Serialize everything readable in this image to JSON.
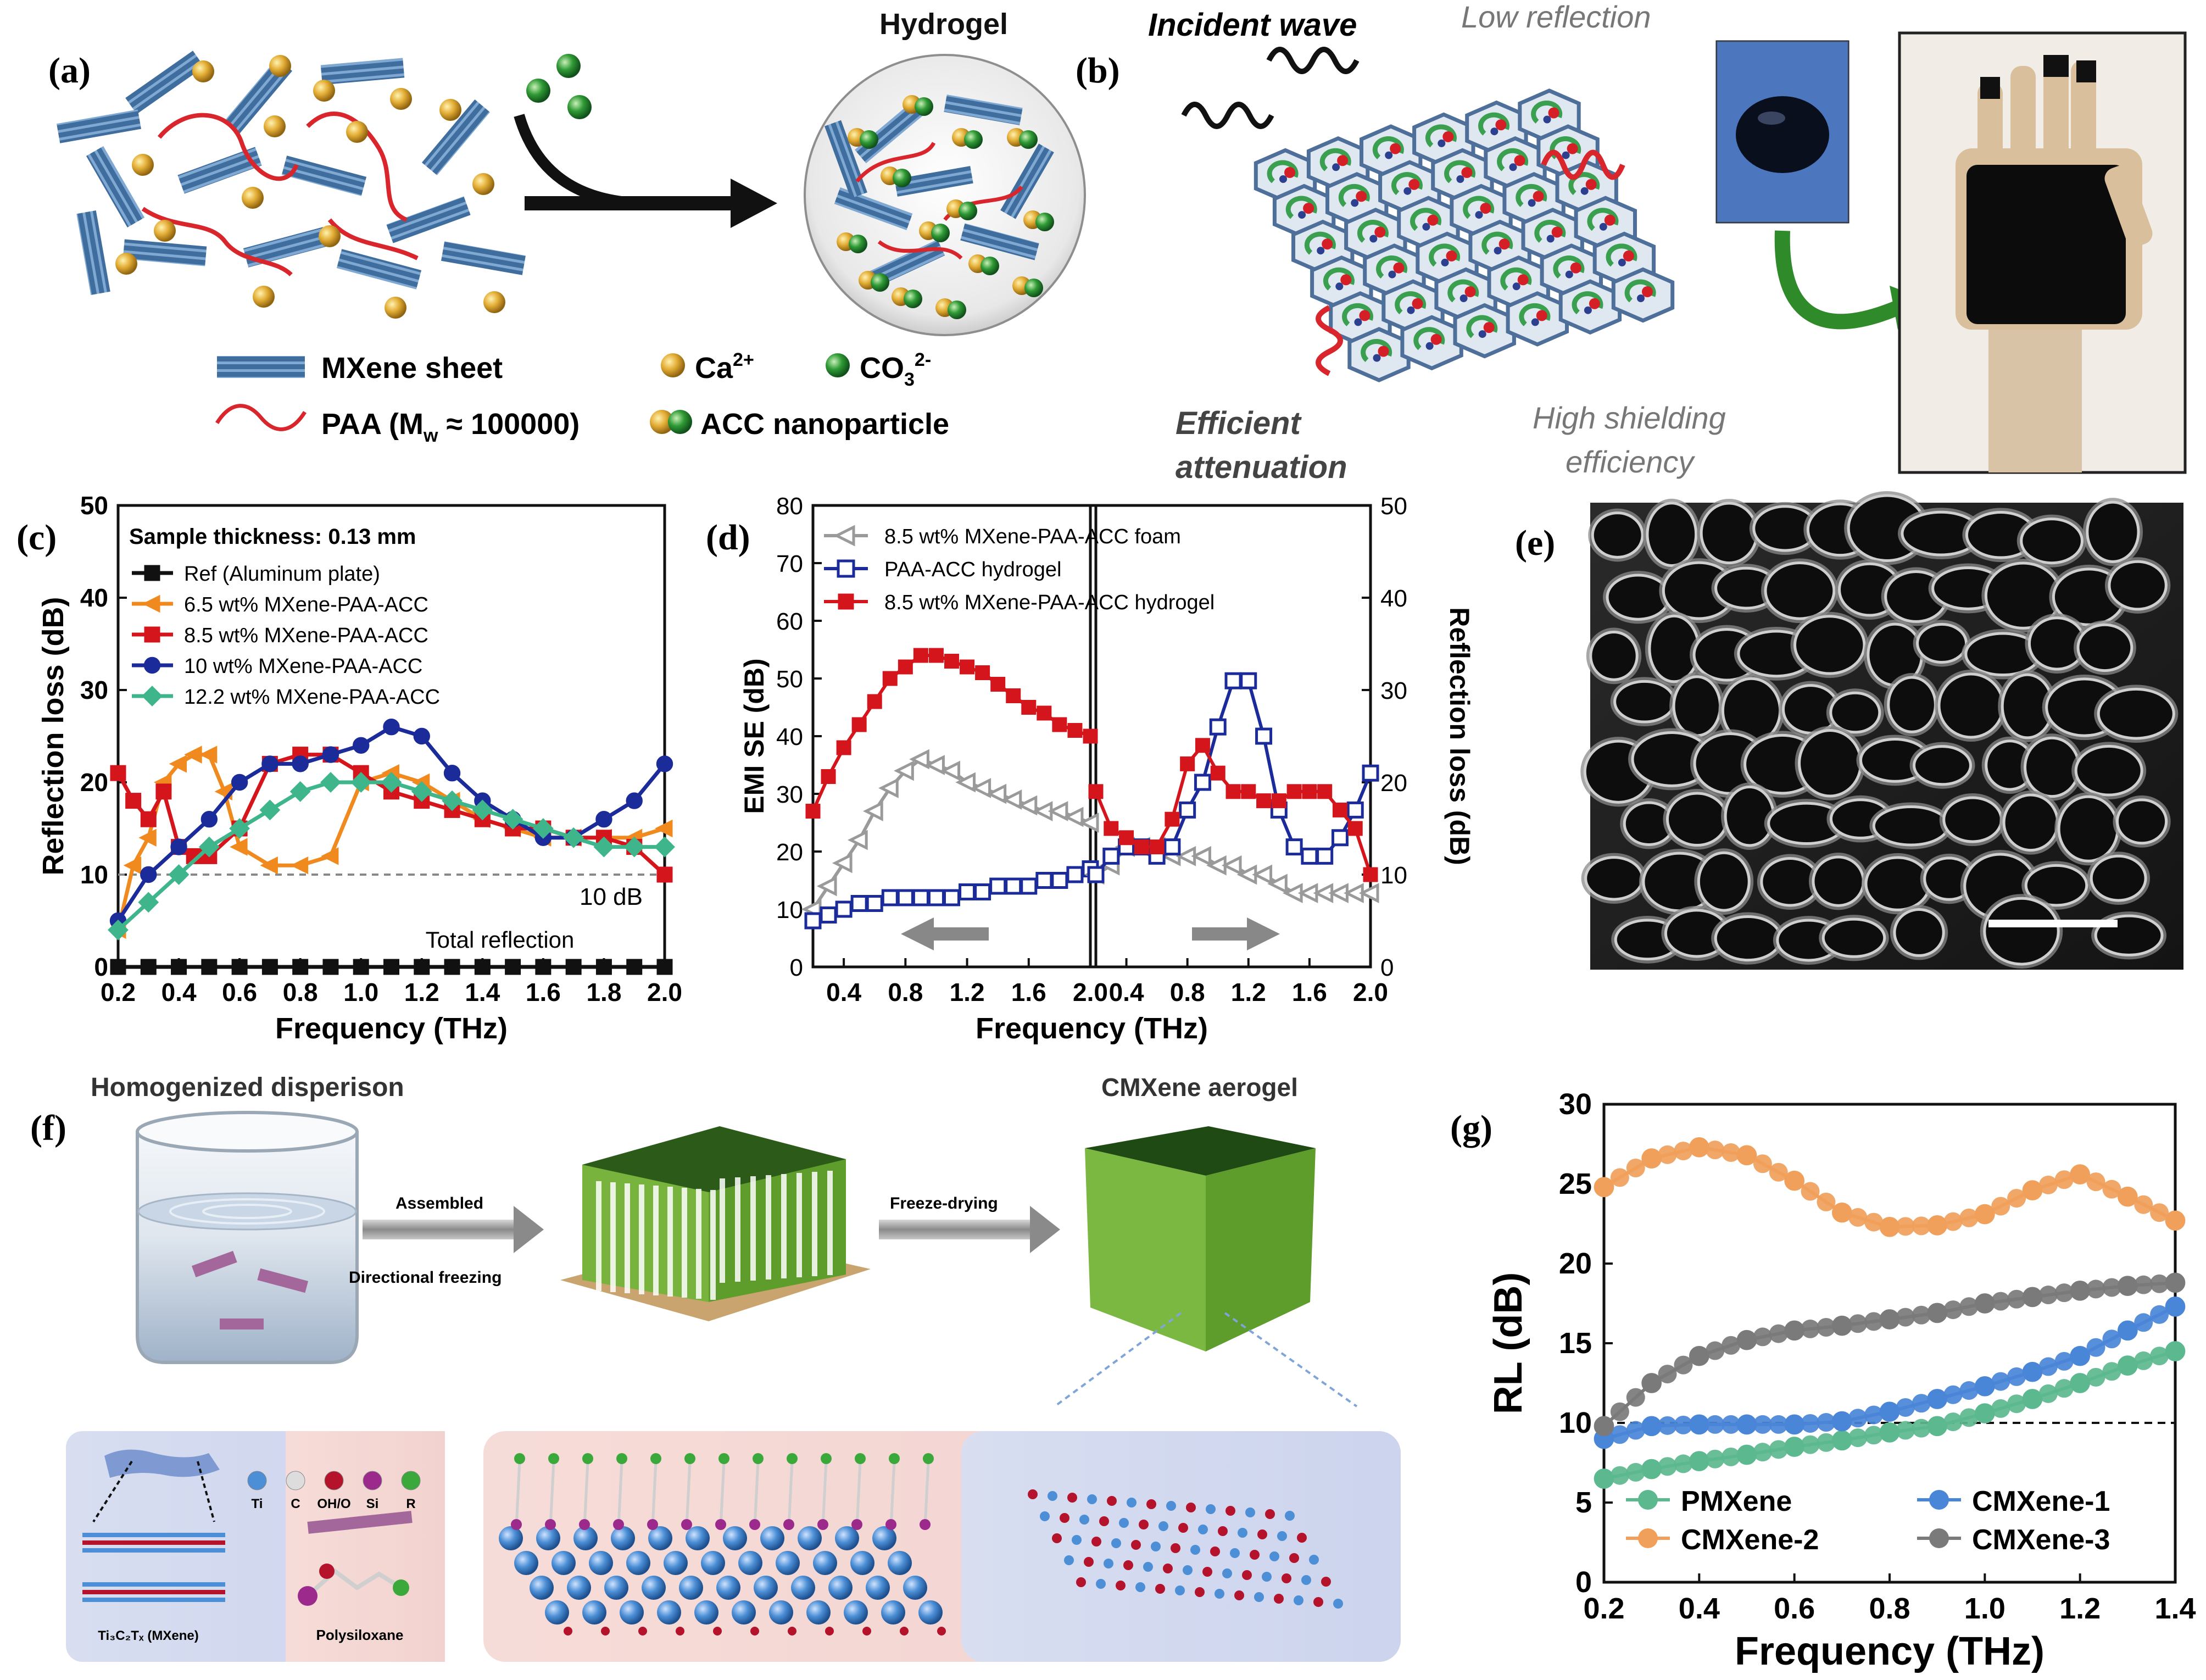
{
  "panels": {
    "a": {
      "label": "(a)",
      "hydrogel_title": "Hydrogel",
      "legend": {
        "mxene": "MXene sheet",
        "ca": "Ca",
        "ca_sup": "2+",
        "co3": "CO",
        "co3_sub": "3",
        "co3_sup": "2-",
        "paa": "PAA (M",
        "paa_sub": "w",
        "paa_rest": " ≈ 100000)",
        "acc": "ACC nanoparticle"
      },
      "colors": {
        "mxene": "#5b86b8",
        "ca": "#e3ad35",
        "co3": "#2f9a35",
        "paa": "#d8262c"
      }
    },
    "b": {
      "label": "(b)",
      "incident": "Incident wave",
      "low_reflection": "Low reflection",
      "efficient": "Efficient",
      "attenuation": "attenuation",
      "high_shielding": "High shielding",
      "efficiency": "efficiency"
    },
    "e": {
      "label": "(e)"
    },
    "f": {
      "label": "(f)",
      "homogenized": "Homogenized disperison",
      "aerogel": "CMXene aerogel",
      "assembled": "Assembled",
      "directional": "Directional freezing",
      "freeze_drying": "Freeze-drying",
      "atoms": [
        "Ti",
        "C",
        "OH/O",
        "Si",
        "R"
      ],
      "atom_colors": [
        "#4c8fd6",
        "#dddddd",
        "#b5122b",
        "#9c2a8c",
        "#3aa83a"
      ],
      "ti3c2": "Ti₃C₂Tₓ (MXene)",
      "polysiloxane": "Polysiloxane"
    }
  },
  "chart_data": [
    {
      "id": "c",
      "panel_label": "(c)",
      "type": "line",
      "xlabel": "Frequency (THz)",
      "ylabel": "Reflection loss (dB)",
      "xlim": [
        0.2,
        2.0
      ],
      "ylim": [
        0,
        50
      ],
      "xticks": [
        "0.2",
        "0.4",
        "0.6",
        "0.8",
        "1.0",
        "1.2",
        "1.4",
        "1.6",
        "1.8",
        "2.0"
      ],
      "yticks": [
        "0",
        "10",
        "20",
        "30",
        "40",
        "50"
      ],
      "legend_title": "Sample thickness: 0.13 mm",
      "legend_placement": "top-left",
      "reference_line": {
        "y": 10,
        "label": "10 dB"
      },
      "annotation": "Total reflection",
      "series": [
        {
          "name": "Ref (Aluminum plate)",
          "color": "#111111",
          "marker": "square",
          "x": [
            0.2,
            0.3,
            0.4,
            0.5,
            0.6,
            0.7,
            0.8,
            0.9,
            1.0,
            1.1,
            1.2,
            1.3,
            1.4,
            1.5,
            1.6,
            1.7,
            1.8,
            1.9,
            2.0
          ],
          "y": [
            0,
            0,
            0,
            0,
            0,
            0,
            0,
            0,
            0,
            0,
            0,
            0,
            0,
            0,
            0,
            0,
            0,
            0,
            0
          ]
        },
        {
          "name": "6.5 wt% MXene-PAA-ACC",
          "color": "#f08a1e",
          "marker": "triangle-left",
          "x": [
            0.2,
            0.25,
            0.3,
            0.35,
            0.4,
            0.45,
            0.5,
            0.55,
            0.6,
            0.7,
            0.8,
            0.9,
            1.0,
            1.1,
            1.2,
            1.3,
            1.4,
            1.5,
            1.6,
            1.7,
            1.8,
            1.9,
            2.0
          ],
          "y": [
            4,
            11,
            14,
            20,
            22,
            23,
            23,
            19,
            13,
            11,
            11,
            12,
            20,
            21,
            20,
            18,
            16,
            15,
            14,
            14,
            14,
            14,
            15
          ]
        },
        {
          "name": "8.5 wt% MXene-PAA-ACC",
          "color": "#d4161c",
          "marker": "square",
          "x": [
            0.2,
            0.25,
            0.3,
            0.35,
            0.4,
            0.45,
            0.5,
            0.6,
            0.7,
            0.8,
            0.9,
            1.0,
            1.1,
            1.2,
            1.3,
            1.4,
            1.5,
            1.6,
            1.7,
            1.8,
            1.9,
            2.0
          ],
          "y": [
            21,
            18,
            16,
            19,
            13,
            12,
            12,
            15,
            22,
            23,
            23,
            21,
            19,
            18,
            17,
            16,
            15,
            15,
            14,
            14,
            13,
            10
          ]
        },
        {
          "name": "10 wt% MXene-PAA-ACC",
          "color": "#1b2b9a",
          "marker": "circle",
          "x": [
            0.2,
            0.3,
            0.4,
            0.5,
            0.6,
            0.7,
            0.8,
            0.9,
            1.0,
            1.1,
            1.2,
            1.3,
            1.4,
            1.5,
            1.6,
            1.7,
            1.8,
            1.9,
            2.0
          ],
          "y": [
            5,
            10,
            13,
            16,
            20,
            22,
            22,
            23,
            24,
            26,
            25,
            21,
            18,
            16,
            14,
            14,
            16,
            18,
            22
          ]
        },
        {
          "name": "12.2 wt% MXene-PAA-ACC",
          "color": "#3eb58a",
          "marker": "diamond",
          "x": [
            0.2,
            0.3,
            0.4,
            0.5,
            0.6,
            0.7,
            0.8,
            0.9,
            1.0,
            1.1,
            1.2,
            1.3,
            1.4,
            1.5,
            1.6,
            1.7,
            1.8,
            1.9,
            2.0
          ],
          "y": [
            4,
            7,
            10,
            13,
            15,
            17,
            19,
            20,
            20,
            20,
            19,
            18,
            17,
            16,
            15,
            14,
            13,
            13,
            13
          ]
        }
      ]
    },
    {
      "id": "d",
      "panel_label": "(d)",
      "type": "line",
      "xlabel": "Frequency (THz)",
      "ylabel_left": "EMI SE (dB)",
      "ylabel_right": "Reflection loss (dB)",
      "xlim": [
        0.2,
        2.0
      ],
      "ylim_left": [
        0,
        80
      ],
      "ylim_right": [
        0,
        50
      ],
      "xticks": [
        "0.4",
        "0.8",
        "1.2",
        "1.6",
        "2.0"
      ],
      "yticks_left": [
        "0",
        "10",
        "20",
        "30",
        "40",
        "50",
        "60",
        "70",
        "80"
      ],
      "yticks_right": [
        "0",
        "10",
        "20",
        "30",
        "40",
        "50"
      ],
      "legend_placement": "top-left",
      "series": [
        {
          "name": "8.5 wt% MXene-PAA-ACC foam",
          "color": "#9a9a9a",
          "marker": "open-triangle-left"
        },
        {
          "name": "PAA-ACC hydrogel",
          "color": "#1b2b9a",
          "marker": "open-square"
        },
        {
          "name": "8.5 wt% MXene-PAA-ACC hydrogel",
          "color": "#d4161c",
          "marker": "square"
        }
      ],
      "left_panel": {
        "axis": "EMI SE",
        "series": [
          {
            "name": "8.5 wt% MXene-PAA-ACC foam",
            "x": [
              0.2,
              0.3,
              0.4,
              0.5,
              0.6,
              0.7,
              0.8,
              0.9,
              1.0,
              1.1,
              1.2,
              1.3,
              1.4,
              1.5,
              1.6,
              1.7,
              1.8,
              1.9,
              2.0
            ],
            "y": [
              10,
              14,
              18,
              22,
              27,
              31,
              34,
              36,
              35,
              34,
              32,
              31,
              30,
              29,
              28,
              27,
              27,
              26,
              25
            ]
          },
          {
            "name": "PAA-ACC hydrogel",
            "x": [
              0.2,
              0.3,
              0.4,
              0.5,
              0.6,
              0.7,
              0.8,
              0.9,
              1.0,
              1.1,
              1.2,
              1.3,
              1.4,
              1.5,
              1.6,
              1.7,
              1.8,
              1.9,
              2.0
            ],
            "y": [
              8,
              9,
              10,
              11,
              11,
              12,
              12,
              12,
              12,
              12,
              13,
              13,
              14,
              14,
              14,
              15,
              15,
              16,
              17
            ]
          },
          {
            "name": "8.5 wt% MXene-PAA-ACC hydrogel",
            "x": [
              0.2,
              0.3,
              0.4,
              0.5,
              0.6,
              0.7,
              0.8,
              0.9,
              1.0,
              1.1,
              1.2,
              1.3,
              1.4,
              1.5,
              1.6,
              1.7,
              1.8,
              1.9,
              2.0
            ],
            "y": [
              27,
              33,
              38,
              42,
              46,
              50,
              52,
              54,
              54,
              53,
              52,
              51,
              49,
              47,
              45,
              44,
              42,
              41,
              40
            ]
          }
        ]
      },
      "right_panel": {
        "axis": "Reflection loss",
        "series": [
          {
            "name": "8.5 wt% MXene-PAA-ACC foam",
            "x": [
              0.2,
              0.3,
              0.4,
              0.5,
              0.6,
              0.7,
              0.8,
              0.9,
              1.0,
              1.1,
              1.2,
              1.3,
              1.4,
              1.5,
              1.6,
              1.7,
              1.8,
              1.9,
              2.0
            ],
            "y": [
              10,
              11,
              13,
              13,
              13,
              12,
              12,
              12,
              11,
              11,
              10,
              10,
              9,
              8,
              8,
              8,
              8,
              8,
              8
            ]
          },
          {
            "name": "PAA-ACC hydrogel",
            "x": [
              0.2,
              0.3,
              0.4,
              0.5,
              0.6,
              0.7,
              0.8,
              0.9,
              1.0,
              1.1,
              1.2,
              1.3,
              1.4,
              1.5,
              1.6,
              1.7,
              1.8,
              1.9,
              2.0
            ],
            "y": [
              10,
              12,
              13,
              13,
              12,
              13,
              17,
              20,
              26,
              31,
              31,
              25,
              17,
              13,
              12,
              12,
              14,
              17,
              21
            ]
          },
          {
            "name": "8.5 wt% MXene-PAA-ACC hydrogel",
            "x": [
              0.2,
              0.3,
              0.4,
              0.5,
              0.6,
              0.7,
              0.8,
              0.9,
              1.0,
              1.1,
              1.2,
              1.3,
              1.4,
              1.5,
              1.6,
              1.7,
              1.8,
              1.9,
              2.0
            ],
            "y": [
              19,
              15,
              14,
              13,
              13,
              16,
              22,
              24,
              21,
              19,
              19,
              18,
              18,
              19,
              19,
              19,
              17,
              15,
              10
            ]
          }
        ]
      }
    },
    {
      "id": "g",
      "panel_label": "(g)",
      "type": "line",
      "xlabel": "Frequency (THz)",
      "ylabel": "RL (dB)",
      "xlim": [
        0.2,
        1.4
      ],
      "ylim": [
        0,
        30
      ],
      "xticks": [
        "0.2",
        "0.4",
        "0.6",
        "0.8",
        "1.0",
        "1.2",
        "1.4"
      ],
      "yticks": [
        "0",
        "5",
        "10",
        "15",
        "20",
        "25",
        "30"
      ],
      "reference_line": {
        "y": 10
      },
      "legend_placement": "bottom",
      "series": [
        {
          "name": "PMXene",
          "color": "#5cb88f",
          "x": [
            0.2,
            0.3,
            0.4,
            0.5,
            0.6,
            0.7,
            0.8,
            0.9,
            1.0,
            1.1,
            1.2,
            1.3,
            1.4
          ],
          "y": [
            6.5,
            7.1,
            7.6,
            8.0,
            8.5,
            8.9,
            9.4,
            9.8,
            10.6,
            11.5,
            12.5,
            13.6,
            14.5
          ]
        },
        {
          "name": "CMXene-1",
          "color": "#4a86d8",
          "x": [
            0.2,
            0.3,
            0.4,
            0.5,
            0.6,
            0.7,
            0.8,
            0.9,
            1.0,
            1.1,
            1.2,
            1.3,
            1.4
          ],
          "y": [
            9.0,
            9.8,
            9.9,
            9.9,
            9.9,
            10.1,
            10.7,
            11.5,
            12.3,
            13.2,
            14.2,
            15.8,
            17.3
          ]
        },
        {
          "name": "CMXene-2",
          "color": "#f0a05a",
          "x": [
            0.2,
            0.3,
            0.4,
            0.5,
            0.6,
            0.7,
            0.8,
            0.9,
            1.0,
            1.1,
            1.2,
            1.3,
            1.4
          ],
          "y": [
            24.8,
            26.6,
            27.3,
            26.8,
            25.2,
            23.2,
            22.3,
            22.4,
            23.1,
            24.6,
            25.6,
            24.2,
            22.7
          ]
        },
        {
          "name": "CMXene-3",
          "color": "#7a7a7a",
          "x": [
            0.2,
            0.3,
            0.4,
            0.5,
            0.6,
            0.7,
            0.8,
            0.9,
            1.0,
            1.1,
            1.2,
            1.3,
            1.4
          ],
          "y": [
            9.8,
            12.5,
            14.2,
            15.2,
            15.8,
            16.1,
            16.5,
            16.9,
            17.5,
            17.9,
            18.3,
            18.6,
            18.8
          ]
        }
      ]
    }
  ]
}
